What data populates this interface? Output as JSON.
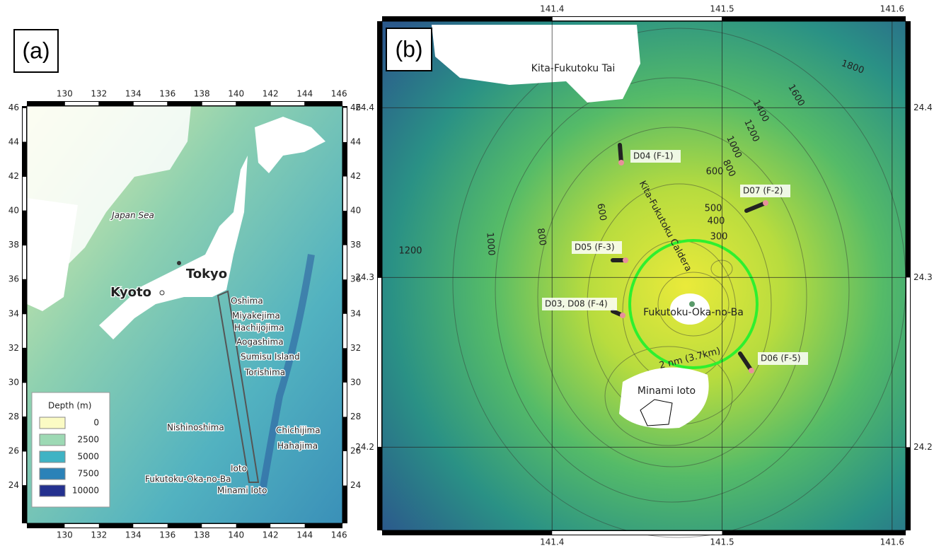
{
  "panel_a": {
    "tag": "(a)",
    "xlim": [
      127.8,
      146.2
    ],
    "ylim": [
      21.8,
      46.1
    ],
    "xticks": [
      130,
      132,
      134,
      136,
      138,
      140,
      142,
      144,
      146
    ],
    "yticks": [
      24,
      26,
      28,
      30,
      32,
      34,
      36,
      38,
      40,
      42,
      44,
      46
    ],
    "places": [
      "Japan Sea",
      "Tokyo",
      "Kyoto",
      "Oshima",
      "Miyakejima",
      "Hachijojima",
      "Aogashima",
      "Sumisu Island",
      "Torishima",
      "Nishinoshima",
      "Chichijima",
      "Hahajima",
      "Ioto",
      "Fukutoku-Oka-no-Ba",
      "Minami Ioto"
    ],
    "legend": {
      "title": "Depth (m)",
      "items": [
        {
          "depth": 0,
          "color": "#fbfbc4"
        },
        {
          "depth": 2500,
          "color": "#9dd9b4"
        },
        {
          "depth": 5000,
          "color": "#3fb3c4"
        },
        {
          "depth": 7500,
          "color": "#2b82b8"
        },
        {
          "depth": 10000,
          "color": "#24318f"
        }
      ]
    }
  },
  "panel_b": {
    "tag": "(b)",
    "xlim": [
      141.3,
      141.608
    ],
    "ylim": [
      24.151,
      24.451
    ],
    "xticks": [
      141.4,
      141.5,
      141.6
    ],
    "yticks": [
      24.2,
      24.3,
      24.4
    ],
    "grid": true,
    "places": [
      "Kita-Fukutoku Tai",
      "Kita-Fukutoku Caldera",
      "Fukutoku-Oka-no-Ba",
      "Minami Ioto",
      "2 nm (3.7km)"
    ],
    "stations": [
      "D04 (F-1)",
      "D07 (F-2)",
      "D05 (F-3)",
      "D03, D08 (F-4)",
      "D06 (F-5)"
    ],
    "contour_labels": [
      1800,
      1600,
      1400,
      1200,
      1000,
      800,
      600,
      500,
      400,
      300,
      600,
      800,
      1000,
      1200
    ]
  }
}
